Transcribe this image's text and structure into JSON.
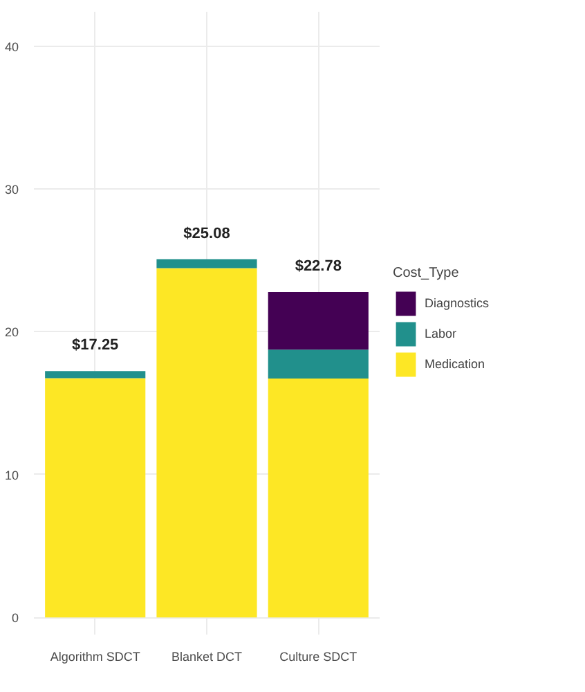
{
  "chart_data": {
    "type": "bar",
    "stacked": true,
    "categories": [
      "Algorithm SDCT",
      "Blanket DCT",
      "Culture SDCT"
    ],
    "series": [
      {
        "name": "Medication",
        "color": "#fde725",
        "values": [
          16.75,
          24.45,
          16.72
        ]
      },
      {
        "name": "Labor",
        "color": "#21908c",
        "values": [
          0.5,
          0.63,
          2.03
        ]
      },
      {
        "name": "Diagnostics",
        "color": "#440154",
        "values": [
          null,
          null,
          4.03
        ]
      }
    ],
    "totals": [
      "$17.25",
      "$25.08",
      "$22.78"
    ],
    "legend_title": "Cost_Type",
    "legend": "right",
    "grid": true,
    "ylim": [
      -1.2,
      42.4
    ],
    "yticks": [
      0,
      10,
      20,
      30,
      40
    ]
  }
}
